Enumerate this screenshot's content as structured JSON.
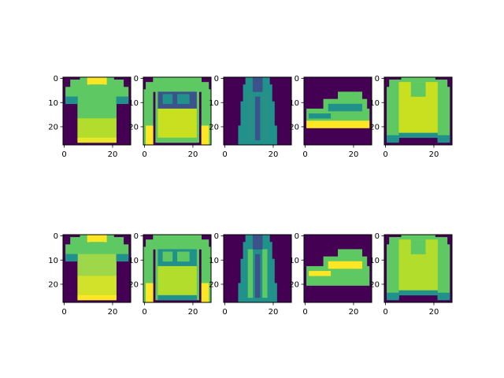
{
  "chart_data": {
    "type": "heatmap",
    "description": "",
    "colormap": [
      "#440154",
      "#3b528b",
      "#21918c",
      "#5ec962",
      "#fde725"
    ],
    "rows": [
      {
        "name": "",
        "panels": [
          {
            "name": "tshirt",
            "label": ""
          },
          {
            "name": "sweater",
            "label": ""
          },
          {
            "name": "dress",
            "label": ""
          },
          {
            "name": "sneaker",
            "label": ""
          },
          {
            "name": "pullover",
            "label": ""
          }
        ]
      },
      {
        "name": "",
        "panels": [
          {
            "name": "tshirt",
            "label": ""
          },
          {
            "name": "sweater",
            "label": ""
          },
          {
            "name": "dress",
            "label": ""
          },
          {
            "name": "sneaker",
            "label": ""
          },
          {
            "name": "pullover",
            "label": ""
          }
        ]
      }
    ],
    "image_size": [
      28,
      28
    ],
    "xlim": [
      -0.5,
      27.5
    ],
    "ylim": [
      27.5,
      -0.5
    ],
    "x_ticks": [
      {
        "value": 0,
        "label": "0"
      },
      {
        "value": 20,
        "label": "20"
      }
    ],
    "y_ticks": [
      {
        "value": 0,
        "label": "0"
      },
      {
        "value": 10,
        "label": "10"
      },
      {
        "value": 20,
        "label": "20"
      }
    ]
  }
}
